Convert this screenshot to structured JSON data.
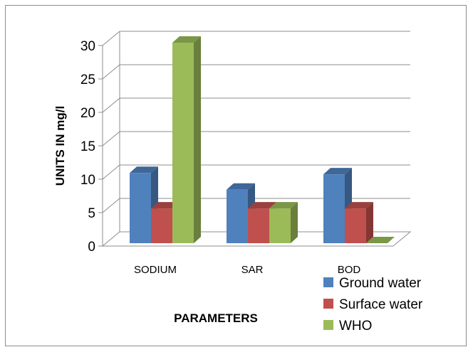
{
  "chart_data": {
    "type": "bar",
    "title": "",
    "xlabel": "PARAMETERS",
    "ylabel": "UNITS IN mg/l",
    "categories": [
      "SODIUM",
      "SAR",
      "BOD"
    ],
    "series": [
      {
        "name": "Ground water",
        "values": [
          10.5,
          8,
          10.3
        ],
        "color": "#4f81bd"
      },
      {
        "name": "Surface water",
        "values": [
          5.2,
          5.2,
          5.2
        ],
        "color": "#c0504d"
      },
      {
        "name": "WHO",
        "values": [
          30,
          5.2,
          0
        ],
        "color": "#9bbb59"
      }
    ],
    "ylim": [
      0,
      30
    ],
    "yticks": [
      0,
      5,
      10,
      15,
      20,
      25,
      30
    ],
    "grid": true,
    "legend_position": "bottom-right"
  }
}
